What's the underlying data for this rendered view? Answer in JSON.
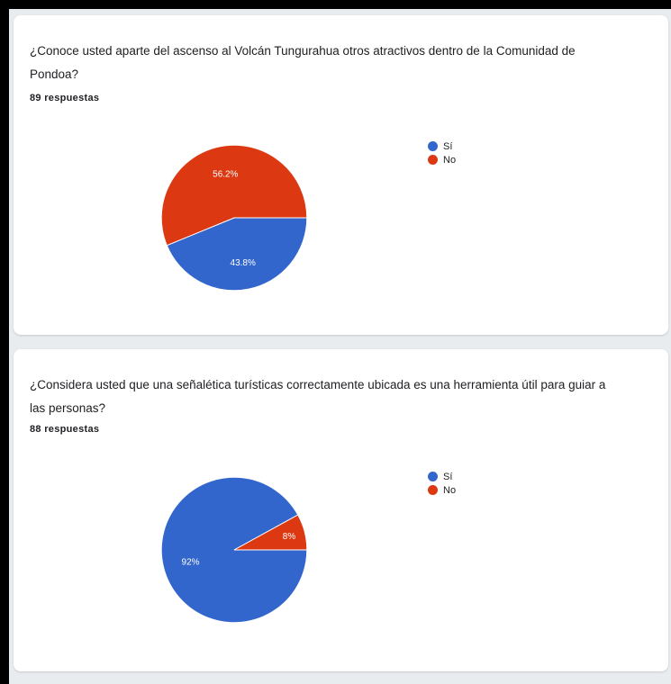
{
  "colors": {
    "si": "#3366cc",
    "no": "#dc3912"
  },
  "charts": [
    {
      "question": "¿Conoce usted aparte del ascenso al Volcán Tungurahua otros atractivos dentro de la Comunidad de Pondoa?",
      "responses": "89 respuestas",
      "legend": [
        "Sí",
        "No"
      ]
    },
    {
      "question": "¿Considera usted que una señalética turísticas correctamente ubicada es una herramienta útil para guiar a las personas?",
      "responses": "88 respuestas",
      "legend": [
        "Sí",
        "No"
      ]
    }
  ],
  "chart_data": [
    {
      "type": "pie",
      "categories": [
        "Sí",
        "No"
      ],
      "values": [
        43.8,
        56.2
      ],
      "labels": [
        "43.8%",
        "56.2%"
      ],
      "legend_position": "right"
    },
    {
      "type": "pie",
      "categories": [
        "Sí",
        "No"
      ],
      "values": [
        92,
        8
      ],
      "labels": [
        "92%",
        "8%"
      ],
      "legend_position": "right"
    }
  ]
}
